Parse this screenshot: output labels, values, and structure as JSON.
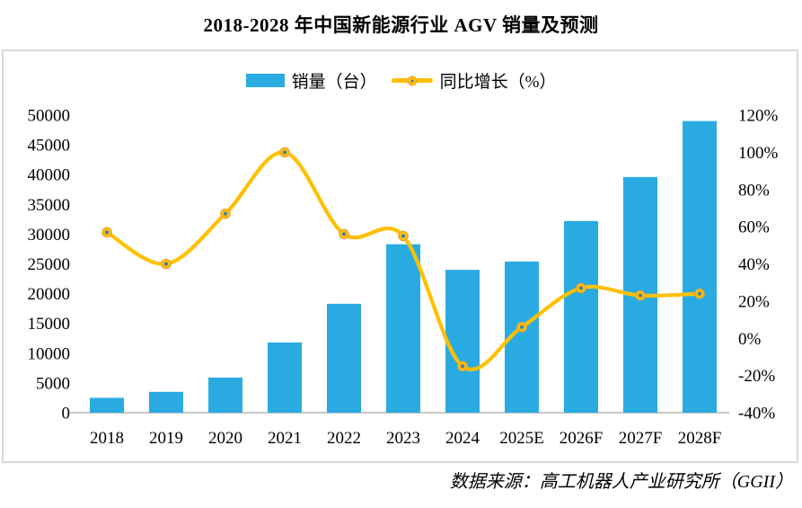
{
  "title": "2018-2028 年中国新能源行业 AGV 销量及预测",
  "footer": "数据来源：高工机器人产业研究所（GGII）",
  "legend": [
    {
      "label": "销量（台）",
      "swatch": "bar-swatch",
      "color": "#29ABE2"
    },
    {
      "label": "同比增长（%）",
      "swatch": "line-swatch",
      "color": "#FFC000"
    }
  ],
  "colors": {
    "bar": "#29ABE2",
    "line": "#FFC000",
    "marker_ring": "#E8A33D",
    "marker_center": "#3F7CAD",
    "axis_line": "#C8C8C8",
    "box_border": "#D9D9D9",
    "text": "#000000"
  },
  "chart_data": {
    "type": "combo-bar-line",
    "title": "2018-2028 年中国新能源行业 AGV 销量及预测",
    "source_note": "数据来源：高工机器人产业研究所（GGII）",
    "categories": [
      "2018",
      "2019",
      "2020",
      "2021",
      "2022",
      "2023",
      "2024",
      "2025E",
      "2026F",
      "2027F",
      "2028F"
    ],
    "series": [
      {
        "name": "销量（台）",
        "type": "bar",
        "axis": "left",
        "values": [
          2500,
          3500,
          5900,
          11800,
          18300,
          28300,
          24000,
          25400,
          32200,
          39600,
          49000
        ]
      },
      {
        "name": "同比增长（%）",
        "type": "line",
        "axis": "right",
        "smooth": true,
        "values": [
          57,
          40,
          67,
          100,
          56,
          55,
          -15,
          6,
          27,
          23,
          24
        ]
      }
    ],
    "left_axis": {
      "min": 0,
      "max": 50000,
      "step": 5000,
      "tick_labels": [
        "0",
        "5000",
        "10000",
        "15000",
        "20000",
        "25000",
        "30000",
        "35000",
        "40000",
        "45000",
        "50000"
      ]
    },
    "right_axis": {
      "min": -40,
      "max": 120,
      "step": 20,
      "tick_labels": [
        "-40%",
        "-20%",
        "0%",
        "20%",
        "40%",
        "60%",
        "80%",
        "100%",
        "120%"
      ]
    },
    "grid": false,
    "legend_position": "top-center"
  }
}
